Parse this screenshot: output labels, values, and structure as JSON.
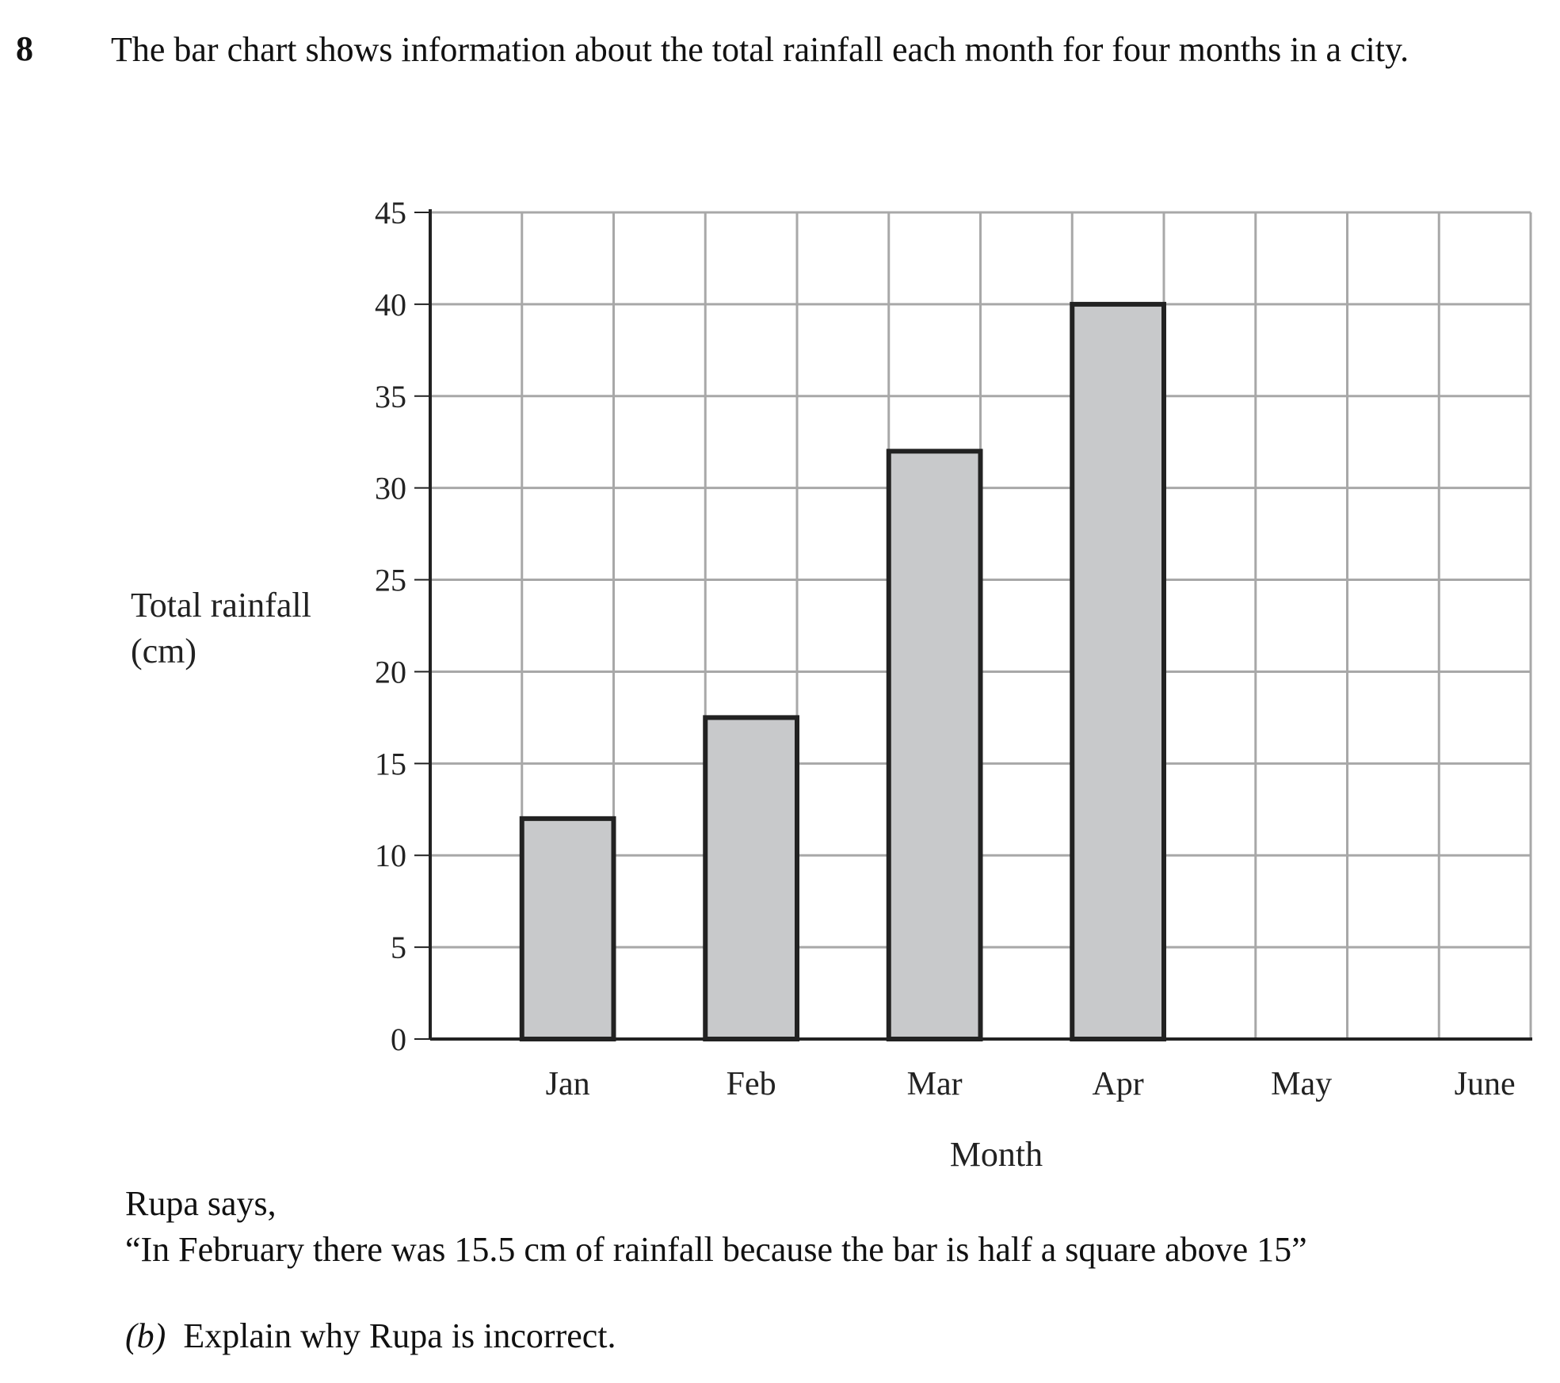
{
  "question_number": "8",
  "intro": "The bar chart shows information about the total rainfall each month for four months in a city.",
  "chart_data": {
    "type": "bar",
    "categories": [
      "Jan",
      "Feb",
      "Mar",
      "Apr",
      "May",
      "June"
    ],
    "values": [
      12,
      17.5,
      32,
      40,
      null,
      null
    ],
    "xlabel": "Month",
    "ylabel_lines": [
      "Total rainfall",
      "(cm)"
    ],
    "ylim": [
      0,
      45
    ],
    "y_ticks": [
      0,
      5,
      10,
      15,
      20,
      25,
      30,
      35,
      40,
      45
    ],
    "grid": true,
    "bar_fill": "#c8c9cb",
    "bar_stroke": "#222222",
    "grid_color": "#a8a8a8"
  },
  "rupa_line1": "Rupa says,",
  "rupa_line2": "“In February there was 15.5 cm of rainfall because the bar is half a square above 15”",
  "question_b_part": "(b)",
  "question_b_text": "Explain why Rupa is incorrect."
}
